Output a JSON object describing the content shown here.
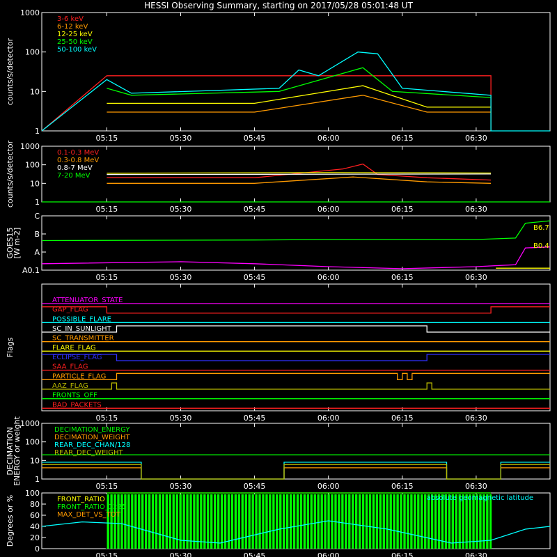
{
  "title": "HESSI Observing Summary, starting on 2017/05/28 05:01:48 UT",
  "time_ticks": [
    "05:15",
    "05:30",
    "05:45",
    "06:00",
    "06:15",
    "06:30"
  ],
  "time_axis": {
    "start": "05:01:48",
    "end": "06:45:00"
  },
  "chart_data": [
    {
      "type": "line",
      "id": "low-energy",
      "ylabel": "counts/s/detector",
      "yscale": "log",
      "ylim": [
        1,
        1000
      ],
      "yticks": [
        "1",
        "10",
        "100",
        "1000"
      ],
      "series": [
        {
          "name": "3-6 keV",
          "color": "#ff2020",
          "points": [
            [
              "05:01:48",
              1
            ],
            [
              "05:15:00",
              25
            ],
            [
              "06:00:00",
              25
            ],
            [
              "06:33:00",
              25
            ],
            [
              "06:33:00",
              1
            ]
          ]
        },
        {
          "name": "6-12 keV",
          "color": "#ff9a00",
          "points": [
            [
              "05:15:00",
              3
            ],
            [
              "05:45:00",
              3
            ],
            [
              "06:07:00",
              8
            ],
            [
              "06:20:00",
              3
            ],
            [
              "06:33:00",
              3
            ]
          ]
        },
        {
          "name": "12-25 keV",
          "color": "#ffff00",
          "points": [
            [
              "05:15:00",
              5
            ],
            [
              "05:45:00",
              5
            ],
            [
              "06:07:00",
              14
            ],
            [
              "06:20:00",
              4
            ],
            [
              "06:33:00",
              4
            ]
          ]
        },
        {
          "name": "25-50 keV",
          "color": "#00ff00",
          "points": [
            [
              "05:15:00",
              12
            ],
            [
              "05:20:00",
              8
            ],
            [
              "05:50:00",
              10
            ],
            [
              "06:07:00",
              40
            ],
            [
              "06:13:00",
              10
            ],
            [
              "06:33:00",
              7
            ]
          ]
        },
        {
          "name": "50-100 keV",
          "color": "#00ffff",
          "points": [
            [
              "05:01:48",
              1
            ],
            [
              "05:15:00",
              20
            ],
            [
              "05:20:00",
              9
            ],
            [
              "05:50:00",
              12
            ],
            [
              "05:54:00",
              35
            ],
            [
              "05:58:00",
              25
            ],
            [
              "06:06:00",
              100
            ],
            [
              "06:10:00",
              90
            ],
            [
              "06:15:00",
              12
            ],
            [
              "06:33:00",
              8
            ],
            [
              "06:33:00",
              1
            ],
            [
              "06:45:00",
              1
            ]
          ]
        }
      ]
    },
    {
      "type": "line",
      "id": "high-energy",
      "ylabel": "counts/s/detector",
      "yscale": "log",
      "ylim": [
        1,
        1000
      ],
      "yticks": [
        "1",
        "10",
        "100",
        "1000"
      ],
      "series": [
        {
          "name": "0.1-0.3 MeV",
          "color": "#ff2020",
          "points": [
            [
              "05:15:00",
              20
            ],
            [
              "05:45:00",
              20
            ],
            [
              "06:03:00",
              60
            ],
            [
              "06:07:00",
              110
            ],
            [
              "06:10:00",
              30
            ],
            [
              "06:20:00",
              20
            ],
            [
              "06:33:00",
              15
            ]
          ]
        },
        {
          "name": "0.3-0.8 MeV",
          "color": "#ff9a00",
          "points": [
            [
              "05:15:00",
              10
            ],
            [
              "05:45:00",
              10
            ],
            [
              "06:05:00",
              22
            ],
            [
              "06:20:00",
              12
            ],
            [
              "06:33:00",
              10
            ]
          ]
        },
        {
          "name": "0.8-7 MeV",
          "color": "#ffffff",
          "points": [
            [
              "05:15:00",
              30
            ],
            [
              "06:33:00",
              32
            ]
          ]
        },
        {
          "name": "7-20 MeV",
          "color": "#00ff00",
          "points": [
            [
              "05:01:48",
              1
            ],
            [
              "06:45:00",
              1
            ]
          ]
        },
        {
          "name": "",
          "color": "#ffff00",
          "points": [
            [
              "05:15:00",
              35
            ],
            [
              "06:00:00",
              38
            ],
            [
              "06:33:00",
              36
            ]
          ]
        }
      ]
    },
    {
      "type": "line",
      "id": "goes",
      "ylabel": "GOES15 [W m-2]",
      "yscale": "log",
      "yticks": [
        "A0.1",
        "A",
        "B",
        "C"
      ],
      "series": [
        {
          "name": "",
          "color": "#00ff00",
          "points": [
            [
              "05:01:48",
              0.55
            ],
            [
              "05:45:00",
              0.56
            ],
            [
              "06:00:00",
              0.57
            ],
            [
              "06:30:00",
              0.57
            ],
            [
              "06:38:00",
              0.6
            ],
            [
              "06:40:00",
              0.9
            ],
            [
              "06:45:00",
              0.95
            ]
          ]
        },
        {
          "name": "",
          "color": "#ff00ff",
          "points": [
            [
              "05:01:48",
              0.08
            ],
            [
              "05:30:00",
              0.12
            ],
            [
              "05:45:00",
              0.08
            ],
            [
              "06:00:00",
              0.02
            ],
            [
              "06:15:00",
              -0.02
            ],
            [
              "06:30:00",
              0.02
            ],
            [
              "06:38:00",
              0.06
            ],
            [
              "06:40:00",
              0.4
            ],
            [
              "06:45:00",
              0.42
            ]
          ]
        },
        {
          "name": "",
          "color": "#ffff00",
          "points": [
            [
              "06:34:00",
              -0.01
            ],
            [
              "06:45:00",
              -0.01
            ]
          ]
        }
      ],
      "annotations": [
        "B6.7",
        "B0.4"
      ]
    },
    {
      "type": "line",
      "id": "flags",
      "ylabel": "Flags",
      "flags": [
        {
          "name": "ATTENUATOR_STATE",
          "color": "#ff00ff",
          "points": [
            [
              "05:01:48",
              0
            ],
            [
              "06:45:00",
              0
            ]
          ]
        },
        {
          "name": "GAP_FLAG",
          "color": "#ff2020",
          "points": [
            [
              "05:01:48",
              1
            ],
            [
              "05:15:00",
              1
            ],
            [
              "05:15:00",
              0
            ],
            [
              "06:33:00",
              0
            ],
            [
              "06:33:00",
              1
            ],
            [
              "06:45:00",
              1
            ]
          ]
        },
        {
          "name": "POSSIBLE_FLARE",
          "color": "#00ffff",
          "points": [
            [
              "05:01:48",
              0
            ],
            [
              "06:45:00",
              0
            ]
          ]
        },
        {
          "name": "SC_IN_SUNLIGHT",
          "color": "#ffffff",
          "points": [
            [
              "05:01:48",
              0
            ],
            [
              "05:15:00",
              0
            ],
            [
              "05:15:00",
              0
            ],
            [
              "05:17:00",
              0
            ],
            [
              "05:17:00",
              1
            ],
            [
              "06:20:00",
              1
            ],
            [
              "06:20:00",
              0
            ],
            [
              "06:45:00",
              0
            ]
          ]
        },
        {
          "name": "SC_TRANSMITTER",
          "color": "#ff9a00",
          "points": [
            [
              "05:01:48",
              0
            ],
            [
              "06:45:00",
              0
            ]
          ]
        },
        {
          "name": "FLARE_FLAG",
          "color": "#ffff00",
          "points": [
            [
              "05:01:48",
              0
            ],
            [
              "06:45:00",
              0
            ]
          ]
        },
        {
          "name": "ECLIPSE_FLAG",
          "color": "#3030ff",
          "points": [
            [
              "05:01:48",
              1
            ],
            [
              "05:17:00",
              1
            ],
            [
              "05:17:00",
              0
            ],
            [
              "06:20:00",
              0
            ],
            [
              "06:20:00",
              1
            ],
            [
              "06:45:00",
              1
            ]
          ]
        },
        {
          "name": "SAA_FLAG",
          "color": "#ff2020",
          "points": [
            [
              "05:01:48",
              0
            ],
            [
              "06:45:00",
              0
            ]
          ]
        },
        {
          "name": "PARTICLE_FLAG",
          "color": "#ff9a00",
          "points": [
            [
              "05:01:48",
              0
            ],
            [
              "05:17:00",
              0
            ],
            [
              "05:17:00",
              1
            ],
            [
              "06:14:00",
              1
            ],
            [
              "06:14:00",
              0
            ],
            [
              "06:15:00",
              0
            ],
            [
              "06:15:00",
              1
            ],
            [
              "06:16:00",
              1
            ],
            [
              "06:16:00",
              0
            ],
            [
              "06:17:00",
              0
            ],
            [
              "06:17:00",
              1
            ],
            [
              "06:45:00",
              1
            ]
          ]
        },
        {
          "name": "AAZ_FLAG",
          "color": "#b8b800",
          "points": [
            [
              "05:01:48",
              0
            ],
            [
              "05:16:00",
              0
            ],
            [
              "05:16:00",
              1
            ],
            [
              "05:17:00",
              1
            ],
            [
              "05:17:00",
              0
            ],
            [
              "06:20:00",
              0
            ],
            [
              "06:20:00",
              1
            ],
            [
              "06:21:00",
              1
            ],
            [
              "06:21:00",
              0
            ],
            [
              "06:45:00",
              0
            ]
          ]
        },
        {
          "name": "FRONTS_OFF",
          "color": "#00ff00",
          "points": [
            [
              "05:01:48",
              0
            ],
            [
              "06:45:00",
              0
            ]
          ]
        },
        {
          "name": "BAD_PACKETS",
          "color": "#ff2020",
          "points": [
            [
              "05:01:48",
              0
            ],
            [
              "06:45:00",
              0
            ]
          ]
        }
      ]
    },
    {
      "type": "line",
      "id": "decimation",
      "ylabel": "DECIMATION ENERGY or weight",
      "yscale": "log",
      "ylim": [
        1,
        1000
      ],
      "yticks": [
        "1",
        "10",
        "100",
        "1000"
      ],
      "series": [
        {
          "name": "DECIMATION_ENERGY",
          "color": "#00ff00",
          "points": [
            [
              "05:01:48",
              20
            ],
            [
              "06:45:00",
              20
            ]
          ]
        },
        {
          "name": "DECIMATION_WEIGHT",
          "color": "#ff9a00",
          "points": [
            [
              "05:01:48",
              4
            ],
            [
              "05:22:00",
              4
            ],
            [
              "05:22:00",
              1
            ],
            [
              "05:51:00",
              1
            ],
            [
              "05:51:00",
              4
            ],
            [
              "06:24:00",
              4
            ],
            [
              "06:24:00",
              1
            ],
            [
              "06:35:00",
              1
            ],
            [
              "06:35:00",
              4
            ],
            [
              "06:45:00",
              4
            ]
          ]
        },
        {
          "name": "REAR_DEC_CHAN/128",
          "color": "#00ffff",
          "points": [
            [
              "05:01:48",
              8
            ],
            [
              "05:22:00",
              8
            ],
            [
              "05:22:00",
              1
            ],
            [
              "05:51:00",
              1
            ],
            [
              "05:51:00",
              8
            ],
            [
              "06:24:00",
              8
            ],
            [
              "06:24:00",
              1
            ],
            [
              "06:35:00",
              1
            ],
            [
              "06:35:00",
              8
            ],
            [
              "06:45:00",
              8
            ]
          ]
        },
        {
          "name": "REAR_DEC_WEIGHT",
          "color": "#b8b800",
          "points": [
            [
              "05:01:48",
              6
            ],
            [
              "05:22:00",
              6
            ],
            [
              "05:22:00",
              1
            ],
            [
              "05:51:00",
              1
            ],
            [
              "05:51:00",
              6
            ],
            [
              "06:24:00",
              6
            ],
            [
              "06:24:00",
              1
            ],
            [
              "06:35:00",
              1
            ],
            [
              "06:35:00",
              6
            ],
            [
              "06:45:00",
              6
            ]
          ]
        }
      ]
    },
    {
      "type": "line",
      "id": "ratios",
      "ylabel": "Degrees or %",
      "ylim": [
        0,
        100
      ],
      "yticks": [
        "0",
        "20",
        "40",
        "60",
        "80",
        "100"
      ],
      "series": [
        {
          "name": "FRONT_RATIO",
          "color": "#ffff00",
          "points": [
            [
              "05:15:00",
              100
            ],
            [
              "06:33:00",
              100
            ]
          ]
        },
        {
          "name": "FRONT_RATIO_1225",
          "color": "#00ff00",
          "points": [
            [
              "05:15:00",
              100
            ],
            [
              "06:33:00",
              100
            ]
          ]
        },
        {
          "name": "MAX_DET_VS_TOT",
          "color": "#ff9a00",
          "points": []
        },
        {
          "name": "absolute geomagnetic latitude",
          "color": "#00ffff",
          "points": [
            [
              "05:01:48",
              40
            ],
            [
              "05:10:00",
              48
            ],
            [
              "05:18:00",
              45
            ],
            [
              "05:30:00",
              15
            ],
            [
              "05:38:00",
              10
            ],
            [
              "05:50:00",
              35
            ],
            [
              "06:00:00",
              50
            ],
            [
              "06:12:00",
              35
            ],
            [
              "06:25:00",
              10
            ],
            [
              "06:33:00",
              15
            ],
            [
              "06:40:00",
              35
            ],
            [
              "06:45:00",
              40
            ]
          ]
        }
      ]
    }
  ]
}
